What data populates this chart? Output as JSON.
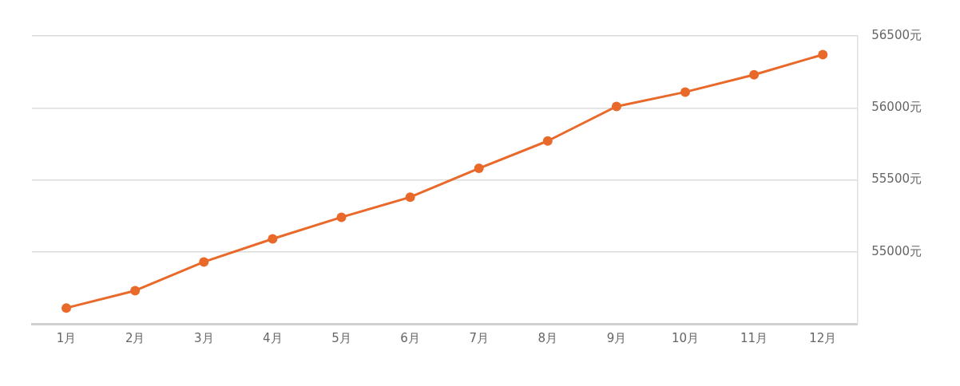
{
  "chart_data": {
    "type": "line",
    "categories": [
      "1月",
      "2月",
      "3月",
      "4月",
      "5月",
      "6月",
      "7月",
      "8月",
      "9月",
      "10月",
      "11月",
      "12月"
    ],
    "series": [
      {
        "color": "#e8692a",
        "values": [
          54610,
          54730,
          54930,
          55090,
          55240,
          55380,
          55580,
          55770,
          56010,
          56110,
          56230,
          56370
        ]
      }
    ],
    "ylim": [
      54500,
      56500
    ],
    "yticks": [
      {
        "value": 55000,
        "label": "55000元"
      },
      {
        "value": 55500,
        "label": "55500元"
      },
      {
        "value": 56000,
        "label": "56000元"
      },
      {
        "value": 56500,
        "label": "56500元"
      }
    ],
    "grid": "y",
    "legend": false,
    "marker": "circle",
    "line_style": "solid"
  }
}
